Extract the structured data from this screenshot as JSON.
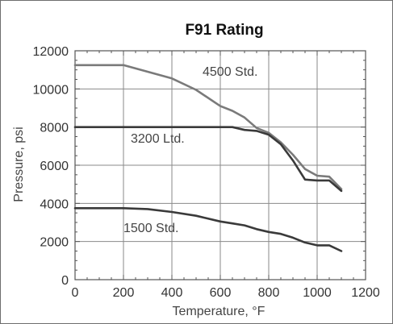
{
  "chart_data": {
    "type": "line",
    "title": "F91 Rating",
    "xlabel": "Temperature, °F",
    "ylabel": "Pressure, psi",
    "xlim": [
      0,
      1200
    ],
    "ylim": [
      0,
      12000
    ],
    "x_ticks": [
      "0",
      "200",
      "400",
      "600",
      "800",
      "1000",
      "1200"
    ],
    "y_ticks": [
      "0",
      "2000",
      "4000",
      "6000",
      "8000",
      "10000",
      "12000"
    ],
    "grid": true,
    "series": [
      {
        "name": "4500 Std.",
        "color": "#7a7a7a",
        "x": [
          0,
          100,
          200,
          300,
          400,
          500,
          600,
          650,
          700,
          750,
          800,
          850,
          900,
          950,
          1000,
          1050,
          1100
        ],
        "y": [
          11250,
          11250,
          11250,
          10900,
          10550,
          9950,
          9100,
          8850,
          8500,
          7950,
          7700,
          7200,
          6550,
          5800,
          5450,
          5400,
          4750
        ]
      },
      {
        "name": "3200 Ltd.",
        "color": "#3a3a3a",
        "x": [
          0,
          100,
          200,
          300,
          400,
          500,
          600,
          650,
          700,
          750,
          800,
          850,
          900,
          950,
          1000,
          1050,
          1100
        ],
        "y": [
          8000,
          8000,
          8000,
          8000,
          8000,
          8000,
          8000,
          8000,
          7850,
          7800,
          7600,
          7100,
          6250,
          5250,
          5200,
          5200,
          4650
        ]
      },
      {
        "name": "1500 Std.",
        "color": "#3a3a3a",
        "x": [
          0,
          100,
          200,
          300,
          400,
          500,
          600,
          650,
          700,
          750,
          800,
          850,
          900,
          950,
          1000,
          1050,
          1100
        ],
        "y": [
          3750,
          3750,
          3750,
          3700,
          3550,
          3350,
          3050,
          2950,
          2850,
          2650,
          2500,
          2400,
          2200,
          1950,
          1800,
          1800,
          1500
        ]
      }
    ]
  }
}
